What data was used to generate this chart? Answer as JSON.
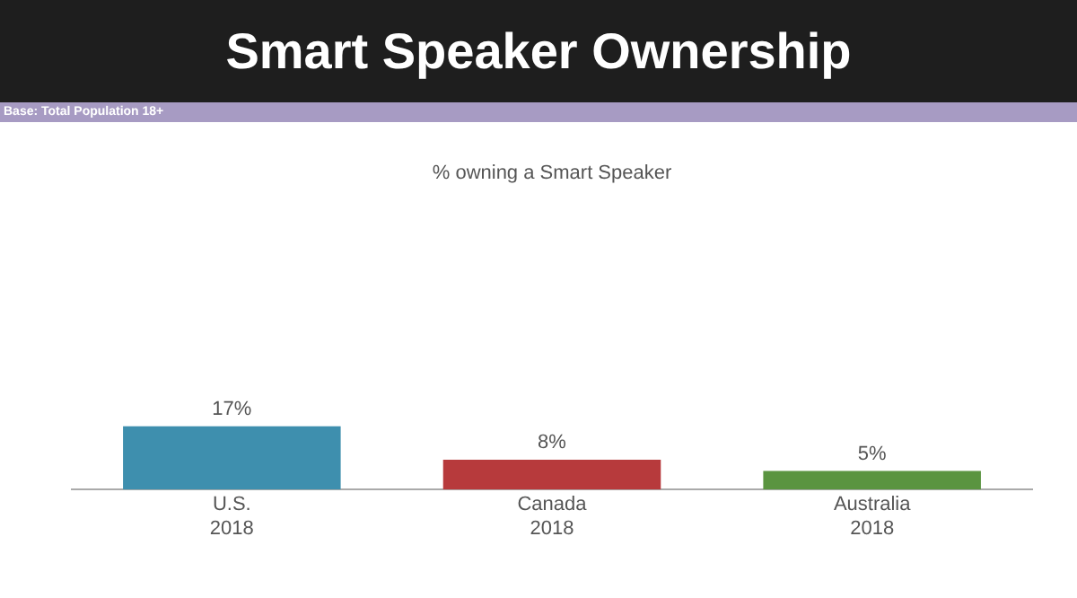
{
  "chart_data": {
    "type": "bar",
    "title": "Smart Speaker Ownership",
    "subtitle": "% owning a Smart Speaker",
    "annotations": [
      "Base: Total Population 18+"
    ],
    "categories": [
      "U.S.\n2018",
      "Canada\n2018",
      "Australia\n2018"
    ],
    "values": [
      17,
      8,
      5
    ],
    "colors": [
      "#3e8fae",
      "#b73a3c",
      "#5a9440"
    ],
    "value_labels": [
      "17%",
      "8%",
      "5%"
    ],
    "grid": false,
    "legend": false
  }
}
